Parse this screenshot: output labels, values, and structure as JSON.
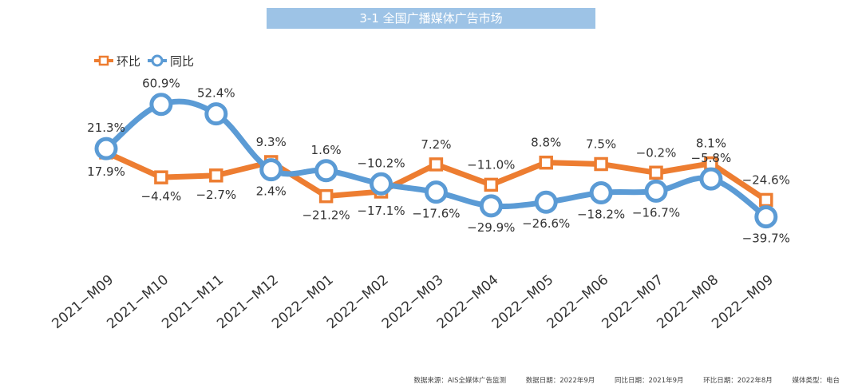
{
  "title": "3-1 全国广播媒体广告市场",
  "chart_data": {
    "type": "line",
    "title": "3-1 全国广播媒体广告市场",
    "categories": [
      "2021-M09",
      "2021-M10",
      "2021-M11",
      "2021-M12",
      "2022-M01",
      "2022-M02",
      "2022-M03",
      "2022-M04",
      "2022-M05",
      "2022-M06",
      "2022-M07",
      "2022-M08",
      "2022-M09"
    ],
    "series": [
      {
        "name": "环比",
        "color": "#ed7d31",
        "marker": "square",
        "values": [
          17.9,
          -4.4,
          -2.7,
          9.3,
          -21.2,
          -17.1,
          7.2,
          -11.0,
          8.8,
          7.5,
          -0.2,
          8.1,
          -24.6
        ],
        "labels": [
          "17.9%",
          "-4.4%",
          "-2.7%",
          "9.3%",
          "-21.2%",
          "-17.1%",
          "7.2%",
          "-11.0%",
          "8.8%",
          "7.5%",
          "-0.2%",
          "8.1%",
          "-24.6%"
        ]
      },
      {
        "name": "同比",
        "color": "#5b9bd5",
        "marker": "circle",
        "values": [
          21.3,
          60.9,
          52.4,
          2.4,
          1.6,
          -10.2,
          -17.6,
          -29.9,
          -26.6,
          -18.2,
          -16.7,
          -5.8,
          -39.7
        ],
        "labels": [
          "21.3%",
          "60.9%",
          "52.4%",
          "2.4%",
          "1.6%",
          "-10.2%",
          "-17.6%",
          "-29.9%",
          "-26.6%",
          "-18.2%",
          "-16.7%",
          "-5.8%",
          "-39.7%"
        ]
      }
    ],
    "legend_position": "top-left",
    "grid": false
  },
  "footer": {
    "source": "数据来源：AIS全媒体广告监测",
    "data_date": "数据日期：2022年9月",
    "yoy_date": "同比日期：2021年9月",
    "mom_date": "环比日期：2022年8月",
    "media_type": "媒体类型：电台"
  }
}
